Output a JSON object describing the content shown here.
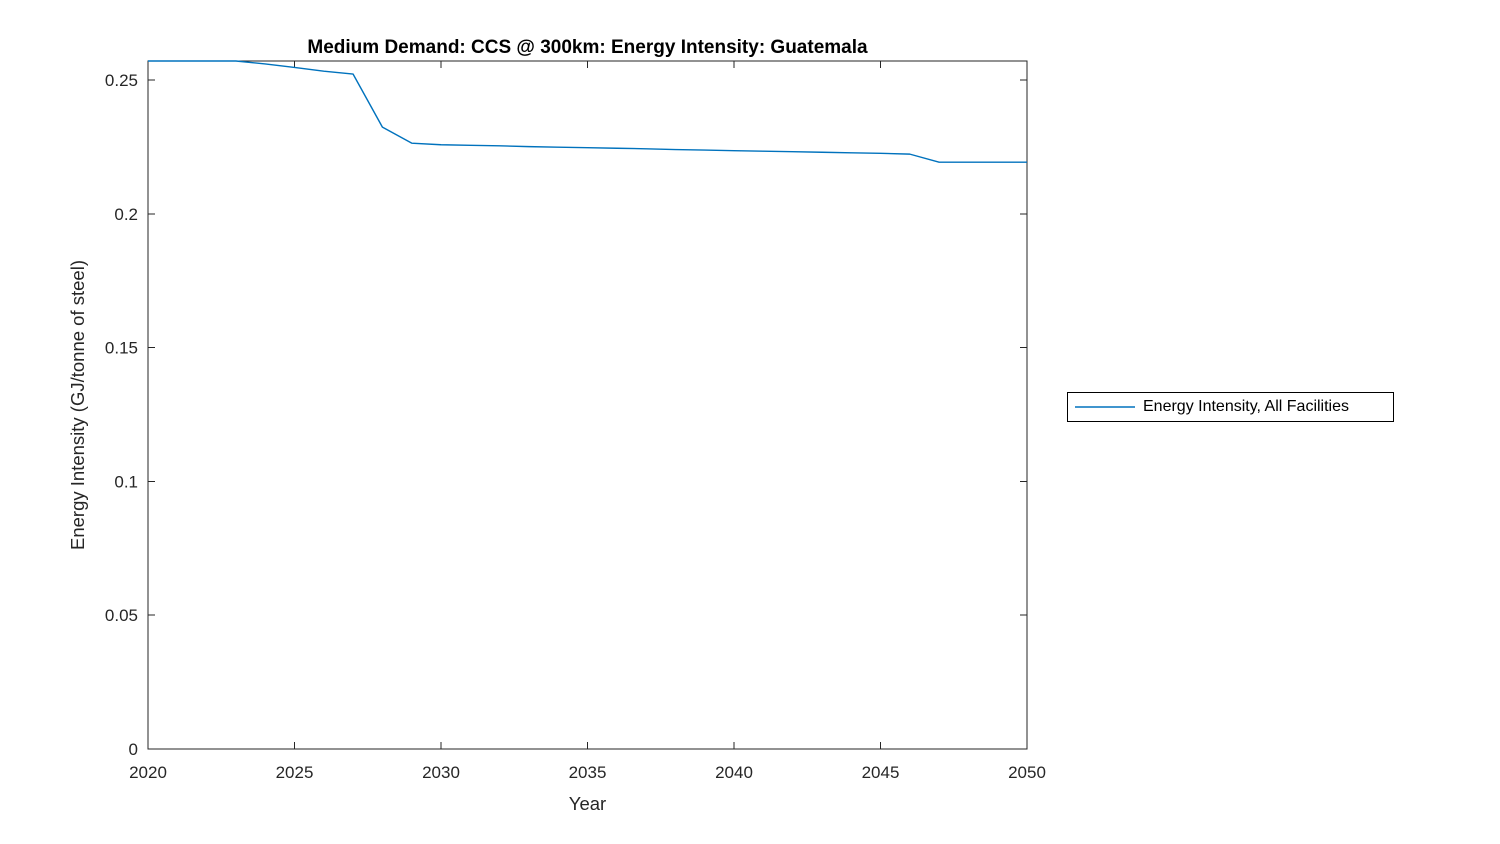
{
  "figure": {
    "background": "#ffffff"
  },
  "chart_data": {
    "type": "line",
    "title": "Medium Demand: CCS @ 300km: Energy Intensity: Guatemala",
    "xlabel": "Year",
    "ylabel": "Energy Intensity (GJ/tonne of steel)",
    "xlim": [
      2020,
      2050
    ],
    "ylim": [
      0,
      0.2571
    ],
    "xticks": [
      2020,
      2025,
      2030,
      2035,
      2040,
      2045,
      2050
    ],
    "xtick_labels": [
      "2020",
      "2025",
      "2030",
      "2035",
      "2040",
      "2045",
      "2050"
    ],
    "yticks": [
      0,
      0.05,
      0.1,
      0.15,
      0.2,
      0.25
    ],
    "ytick_labels": [
      "0",
      "0.05",
      "0.1",
      "0.15",
      "0.2",
      "0.25"
    ],
    "grid": false,
    "axis_color": "#262626",
    "legend": {
      "position": "outside-right",
      "border_color": "#000000",
      "entries": [
        "Energy Intensity, All Facilities"
      ]
    },
    "series": [
      {
        "name": "Energy Intensity, All Facilities",
        "color": "#0072BD",
        "x": [
          2020,
          2021,
          2022,
          2023,
          2024,
          2025,
          2026,
          2027,
          2028,
          2029,
          2030,
          2031,
          2032,
          2033,
          2034,
          2035,
          2036,
          2037,
          2038,
          2039,
          2040,
          2041,
          2042,
          2043,
          2044,
          2045,
          2046,
          2047,
          2048,
          2049,
          2050
        ],
        "y": [
          0.2571,
          0.2571,
          0.2571,
          0.2571,
          0.256,
          0.2547,
          0.2533,
          0.2522,
          0.2324,
          0.2264,
          0.2258,
          0.2256,
          0.2254,
          0.2251,
          0.2249,
          0.2247,
          0.2245,
          0.2243,
          0.224,
          0.2238,
          0.2236,
          0.2234,
          0.2232,
          0.223,
          0.2228,
          0.2226,
          0.2223,
          0.2193,
          0.2193,
          0.2193,
          0.2193
        ]
      }
    ]
  }
}
